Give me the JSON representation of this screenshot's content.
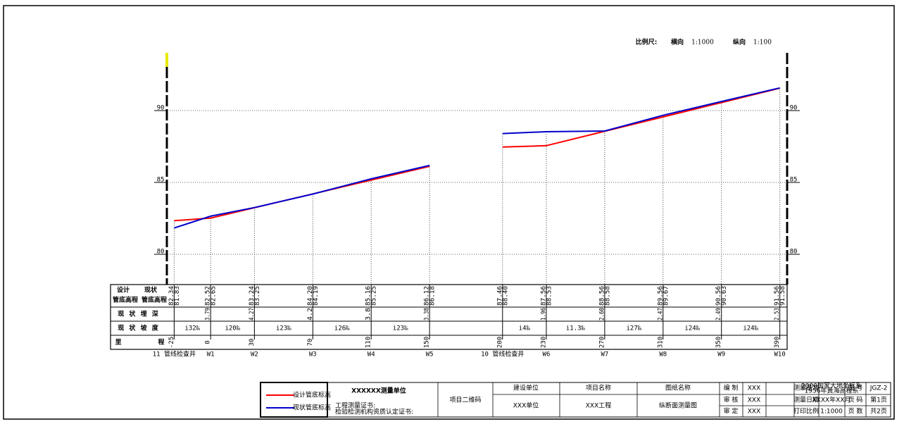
{
  "scale": {
    "label": "比例尺:",
    "h_label": "横向",
    "h": "1:1000",
    "v_label": "纵向",
    "v": "1:100"
  },
  "row_labels": {
    "design": [
      "设计",
      "管底高程"
    ],
    "current": [
      "现状",
      "管底高程"
    ],
    "depth": "现 状 埋 深",
    "slope": "现 状 坡 度",
    "mileage": [
      "里",
      "程"
    ]
  },
  "chart_data": [
    {
      "type": "line",
      "axis_side": "left",
      "xlim": [
        -30,
        395
      ],
      "ylim": [
        78,
        94
      ],
      "yticks": [
        80,
        85,
        90
      ],
      "grid": true,
      "x": [
        -25,
        0,
        30,
        70,
        110,
        150
      ],
      "series": [
        {
          "name": "设计管底标高",
          "color": "#ff0000",
          "values": [
            82.34,
            82.52,
            83.24,
            84.2,
            85.16,
            86.12
          ],
          "value_labels": [
            "82.34",
            "82.52",
            "83.24",
            "84.20",
            "85.16",
            "86.12"
          ]
        },
        {
          "name": "现状管底标高",
          "color": "#0000cc",
          "values": [
            81.83,
            82.65,
            83.25,
            84.19,
            85.25,
            86.18
          ],
          "value_labels": [
            "81.83",
            "82.65",
            "83.25",
            "84.19",
            "85.25",
            "86.18"
          ]
        }
      ],
      "depth_labels": [
        null,
        "3.79",
        "4.27",
        "4.2",
        "3.8",
        "3.38"
      ],
      "slope_labels": [
        "i32‰",
        "i20‰",
        "i23‰",
        "i26‰",
        "i23‰"
      ],
      "station_labels": [
        "11 管线检查井",
        "W1",
        "W2",
        "W3",
        "W4",
        "W5"
      ]
    },
    {
      "type": "line",
      "axis_side": "right",
      "xlim": [
        -30,
        395
      ],
      "ylim": [
        78,
        94
      ],
      "yticks": [
        80,
        85,
        90
      ],
      "grid": true,
      "x": [
        200,
        230,
        270,
        310,
        350,
        390
      ],
      "series": [
        {
          "color": "#ff0000",
          "values": [
            87.46,
            87.56,
            88.56,
            89.56,
            90.56,
            91.56
          ],
          "value_labels": [
            "87.46",
            "87.56",
            "88.56",
            "89.56",
            "90.56",
            "91.56"
          ]
        },
        {
          "color": "#0000cc",
          "values": [
            88.4,
            88.53,
            88.58,
            89.67,
            90.63,
            91.58
          ],
          "value_labels": [
            "88.40",
            "88.53",
            "88.58",
            "89.67",
            "90.63",
            "91.58"
          ]
        }
      ],
      "depth_labels": [
        null,
        "1.96",
        "2.60",
        "2.47",
        "2.49",
        "2.53"
      ],
      "slope_labels": [
        "i4‰",
        "i1.3‰",
        "i27‰",
        "i24‰",
        "i24‰"
      ],
      "station_labels": [
        "10 管线检查井",
        "W6",
        "W7",
        "W8",
        "W9",
        "W10"
      ]
    }
  ],
  "title_block": {
    "unit": "XXXXXX测量单位",
    "cert1": "工程测量证书:",
    "cert2": "检验检测机构资质认定证书:",
    "qr": "项目二维码",
    "client_label": "建设单位",
    "client": "XXX单位",
    "project_label": "项目名称",
    "project": "XXX工程",
    "drawing_label": "图纸名称",
    "drawing": "纵断面测量图",
    "compiled_label": "编 制",
    "compiled": "XXX",
    "reviewed_label": "审 核",
    "reviewed": "XXX",
    "approved_label": "审 定",
    "approved": "XXX",
    "datum_label": "测量基准",
    "datum": [
      "2000国家大地坐标系",
      "1956年黄海高程系"
    ],
    "date_label": "测量日期",
    "date": "XXXX年XX月",
    "print_scale_label": "打印比例",
    "print_scale": "1:1000",
    "drawing_no_label": "图 号",
    "drawing_no": "JGZ-2",
    "page_label": "页 码",
    "page": "第1页",
    "pages_label": "页 数",
    "pages": "共2页"
  }
}
